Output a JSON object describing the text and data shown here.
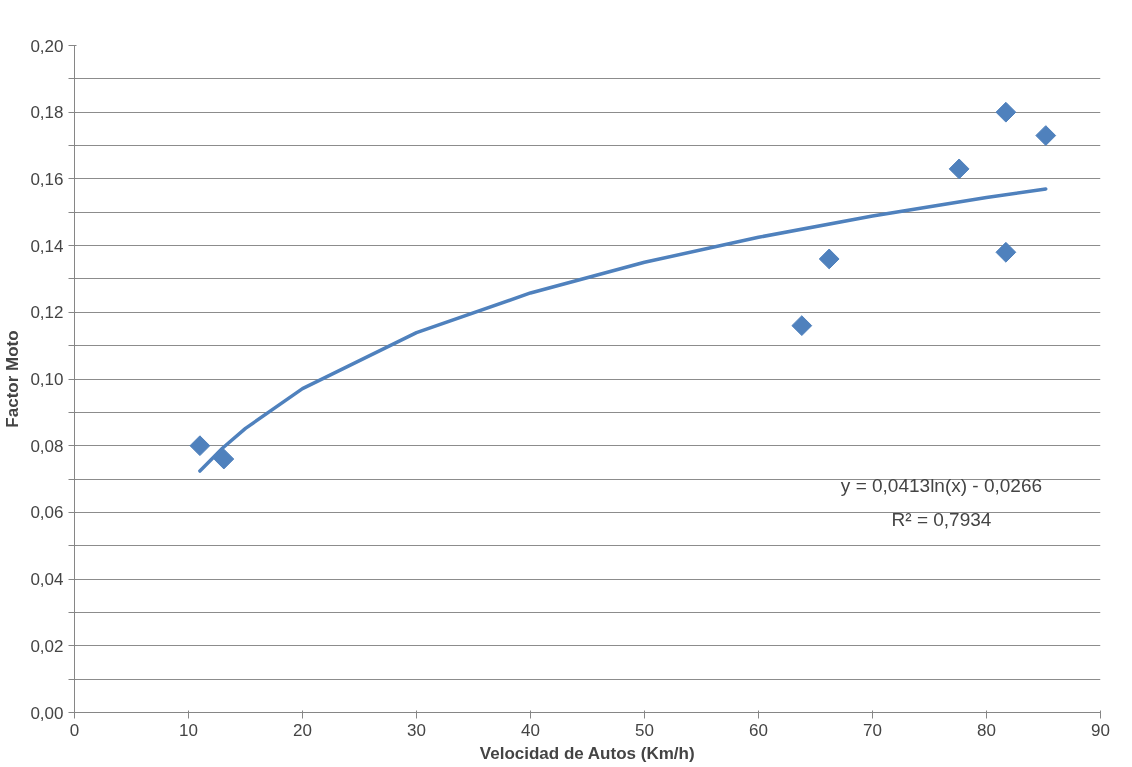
{
  "chart_data": {
    "type": "scatter",
    "xlabel": "Velocidad de Autos (Km/h)",
    "ylabel": "Factor Moto",
    "xlim": [
      0,
      90
    ],
    "xticks": [
      0,
      10,
      20,
      30,
      40,
      50,
      60,
      70,
      80,
      90
    ],
    "ylim": [
      0,
      0.2
    ],
    "yticks": [
      {
        "value": 0,
        "label": "0,00"
      },
      {
        "value": 0.01,
        "label": null
      },
      {
        "value": 0.02,
        "label": "0,02"
      },
      {
        "value": 0.03,
        "label": null
      },
      {
        "value": 0.04,
        "label": "0,04"
      },
      {
        "value": 0.05,
        "label": null
      },
      {
        "value": 0.06,
        "label": "0,06"
      },
      {
        "value": 0.07,
        "label": null
      },
      {
        "value": 0.08,
        "label": "0,08"
      },
      {
        "value": 0.09,
        "label": null
      },
      {
        "value": 0.1,
        "label": "0,10"
      },
      {
        "value": 0.11,
        "label": null
      },
      {
        "value": 0.12,
        "label": "0,12"
      },
      {
        "value": 0.13,
        "label": null
      },
      {
        "value": 0.14,
        "label": "0,14"
      },
      {
        "value": 0.15,
        "label": null
      },
      {
        "value": 0.16,
        "label": "0,16"
      },
      {
        "value": 0.17,
        "label": null
      },
      {
        "value": 0.18,
        "label": "0,18"
      },
      {
        "value": 0.19,
        "label": null
      },
      {
        "value": 0.2,
        "label": "0,20"
      }
    ],
    "grid": "y",
    "marker": "diamond",
    "series": [
      {
        "color": "#4f81bd",
        "x": [
          11.0,
          13.1,
          63.8,
          66.2,
          77.6,
          81.7,
          85.2,
          81.7
        ],
        "values": [
          0.08,
          0.076,
          0.116,
          0.136,
          0.163,
          0.18,
          0.173,
          0.138
        ]
      },
      {
        "type": "line",
        "marker": "none",
        "color": "#4f81bd",
        "x": [
          11,
          13,
          15,
          20,
          30,
          40,
          50,
          60,
          70,
          80,
          85.2
        ],
        "values": [
          0.0724,
          0.0793,
          0.0852,
          0.0971,
          0.1139,
          0.1258,
          0.135,
          0.1425,
          0.1489,
          0.1544,
          0.157
        ]
      }
    ],
    "annotations": [
      "y = 0,0413ln(x) - 0,0266",
      "R² = 0,7934"
    ]
  }
}
